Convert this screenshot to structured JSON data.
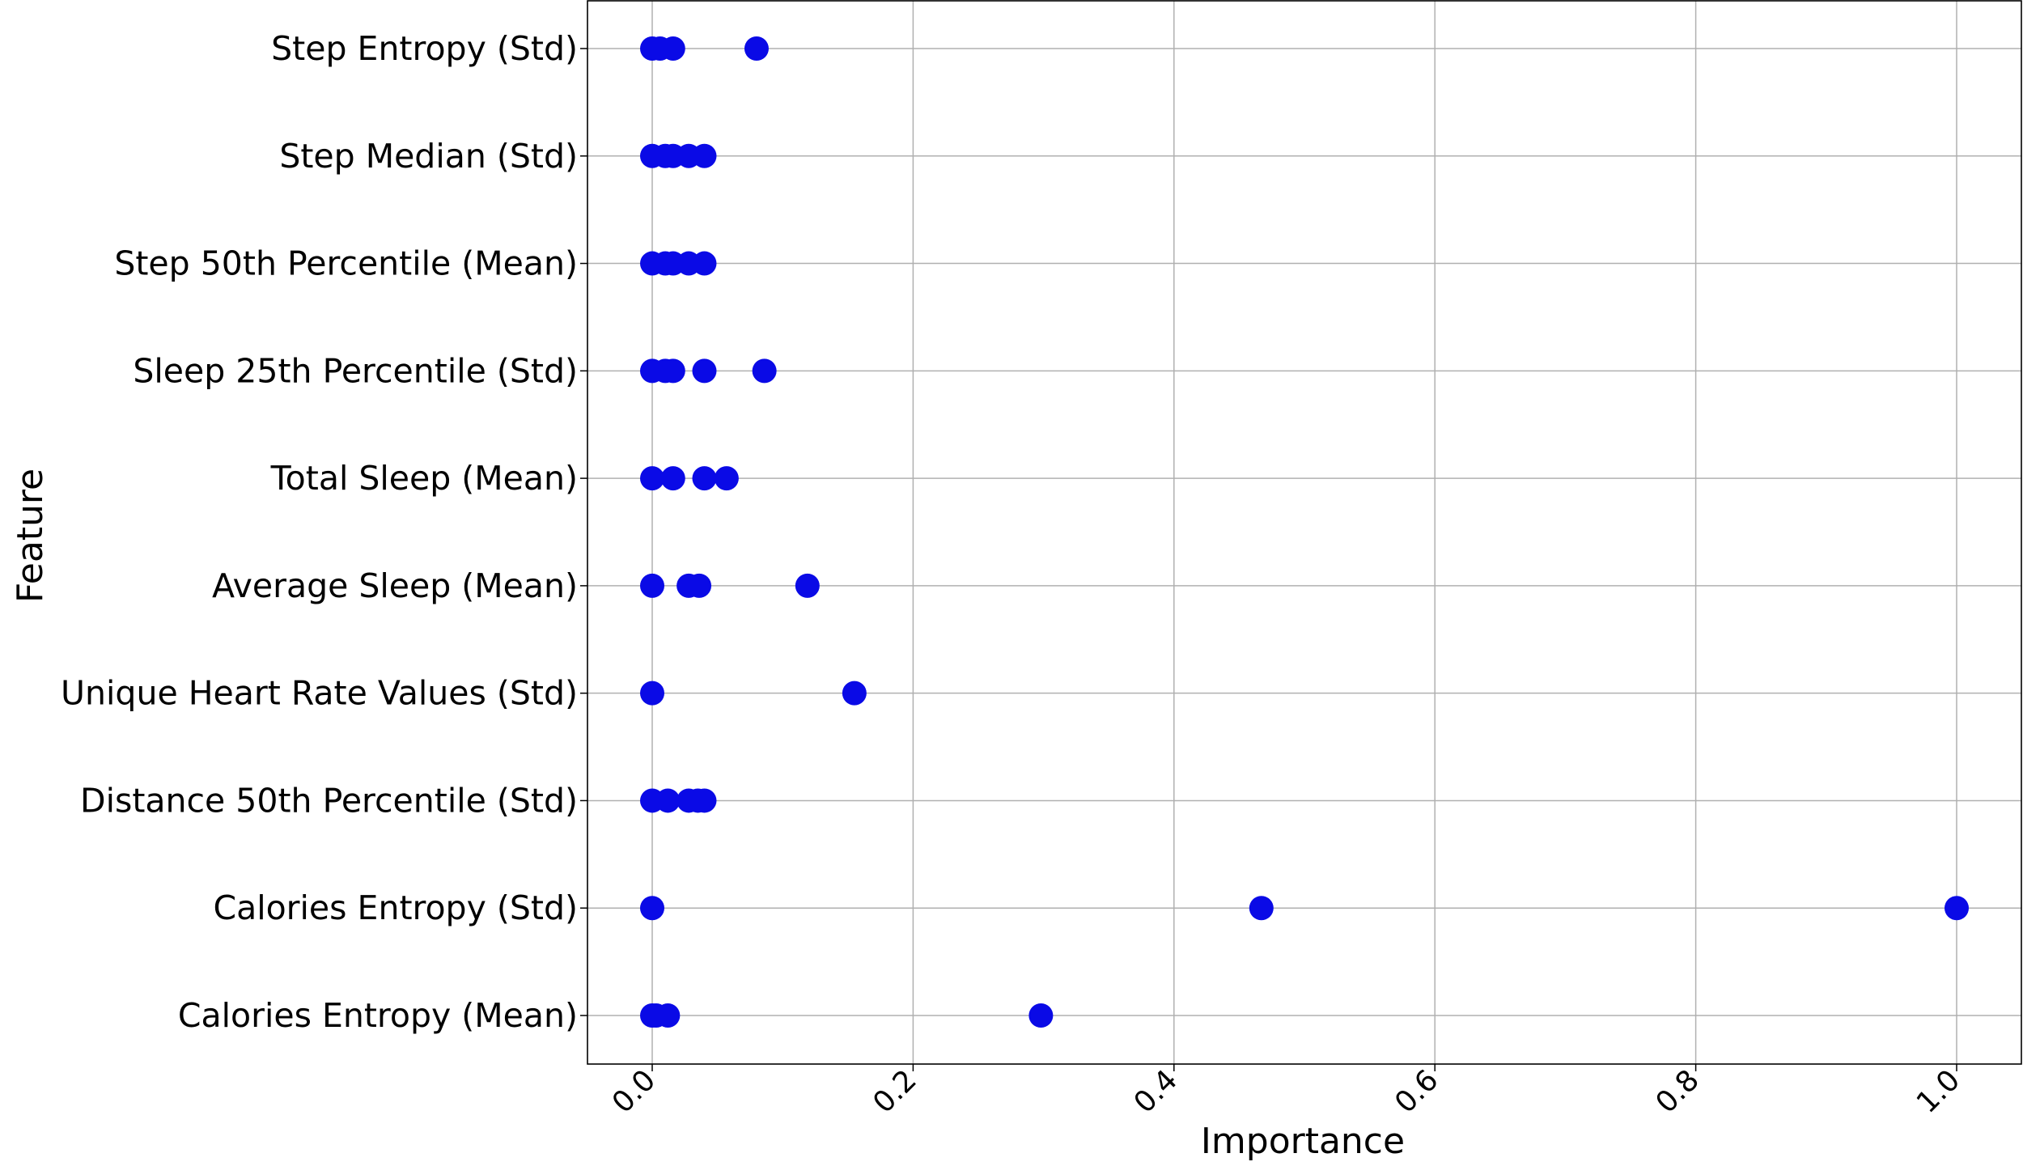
{
  "chart_data": {
    "type": "scatter",
    "title": "",
    "xlabel": "Importance",
    "ylabel": "Feature",
    "xlim": [
      -0.097,
      2.1
    ],
    "x_ticks": [
      "0.0",
      "0.2",
      "0.4",
      "0.6",
      "0.8",
      "1.0"
    ],
    "grid": true,
    "marker_color": "#0a0ae6",
    "categories": [
      "Calories Entropy (Mean)",
      "Calories Entropy (Std)",
      "Distance 50th Percentile (Std)",
      "Unique Heart Rate Values (Std)",
      "Average Sleep (Mean)",
      "Total Sleep (Mean)",
      "Sleep 25th Percentile (Std)",
      "Step 50th Percentile (Mean)",
      "Step Median (Std)",
      "Step Entropy (Std)"
    ],
    "points": [
      {
        "feature": "Calories Entropy (Mean)",
        "values": [
          0.0,
          0.003,
          0.012,
          0.298
        ]
      },
      {
        "feature": "Calories Entropy (Std)",
        "values": [
          0.0,
          0.467,
          1.0
        ]
      },
      {
        "feature": "Distance 50th Percentile (Std)",
        "values": [
          0.0,
          0.012,
          0.028,
          0.035,
          0.04
        ]
      },
      {
        "feature": "Unique Heart Rate Values (Std)",
        "values": [
          0.0,
          0.155
        ]
      },
      {
        "feature": "Average Sleep (Mean)",
        "values": [
          0.0,
          0.028,
          0.036,
          0.119
        ]
      },
      {
        "feature": "Total Sleep (Mean)",
        "values": [
          0.0,
          0.016,
          0.04,
          0.057
        ]
      },
      {
        "feature": "Sleep 25th Percentile (Std)",
        "values": [
          0.0,
          0.01,
          0.016,
          0.04,
          0.086
        ]
      },
      {
        "feature": "Step 50th Percentile (Mean)",
        "values": [
          0.0,
          0.01,
          0.016,
          0.028,
          0.04
        ]
      },
      {
        "feature": "Step Median (Std)",
        "values": [
          0.0,
          0.01,
          0.016,
          0.028,
          0.04
        ]
      },
      {
        "feature": "Step Entropy (Std)",
        "values": [
          0.0,
          0.006,
          0.016,
          0.08
        ]
      }
    ]
  }
}
